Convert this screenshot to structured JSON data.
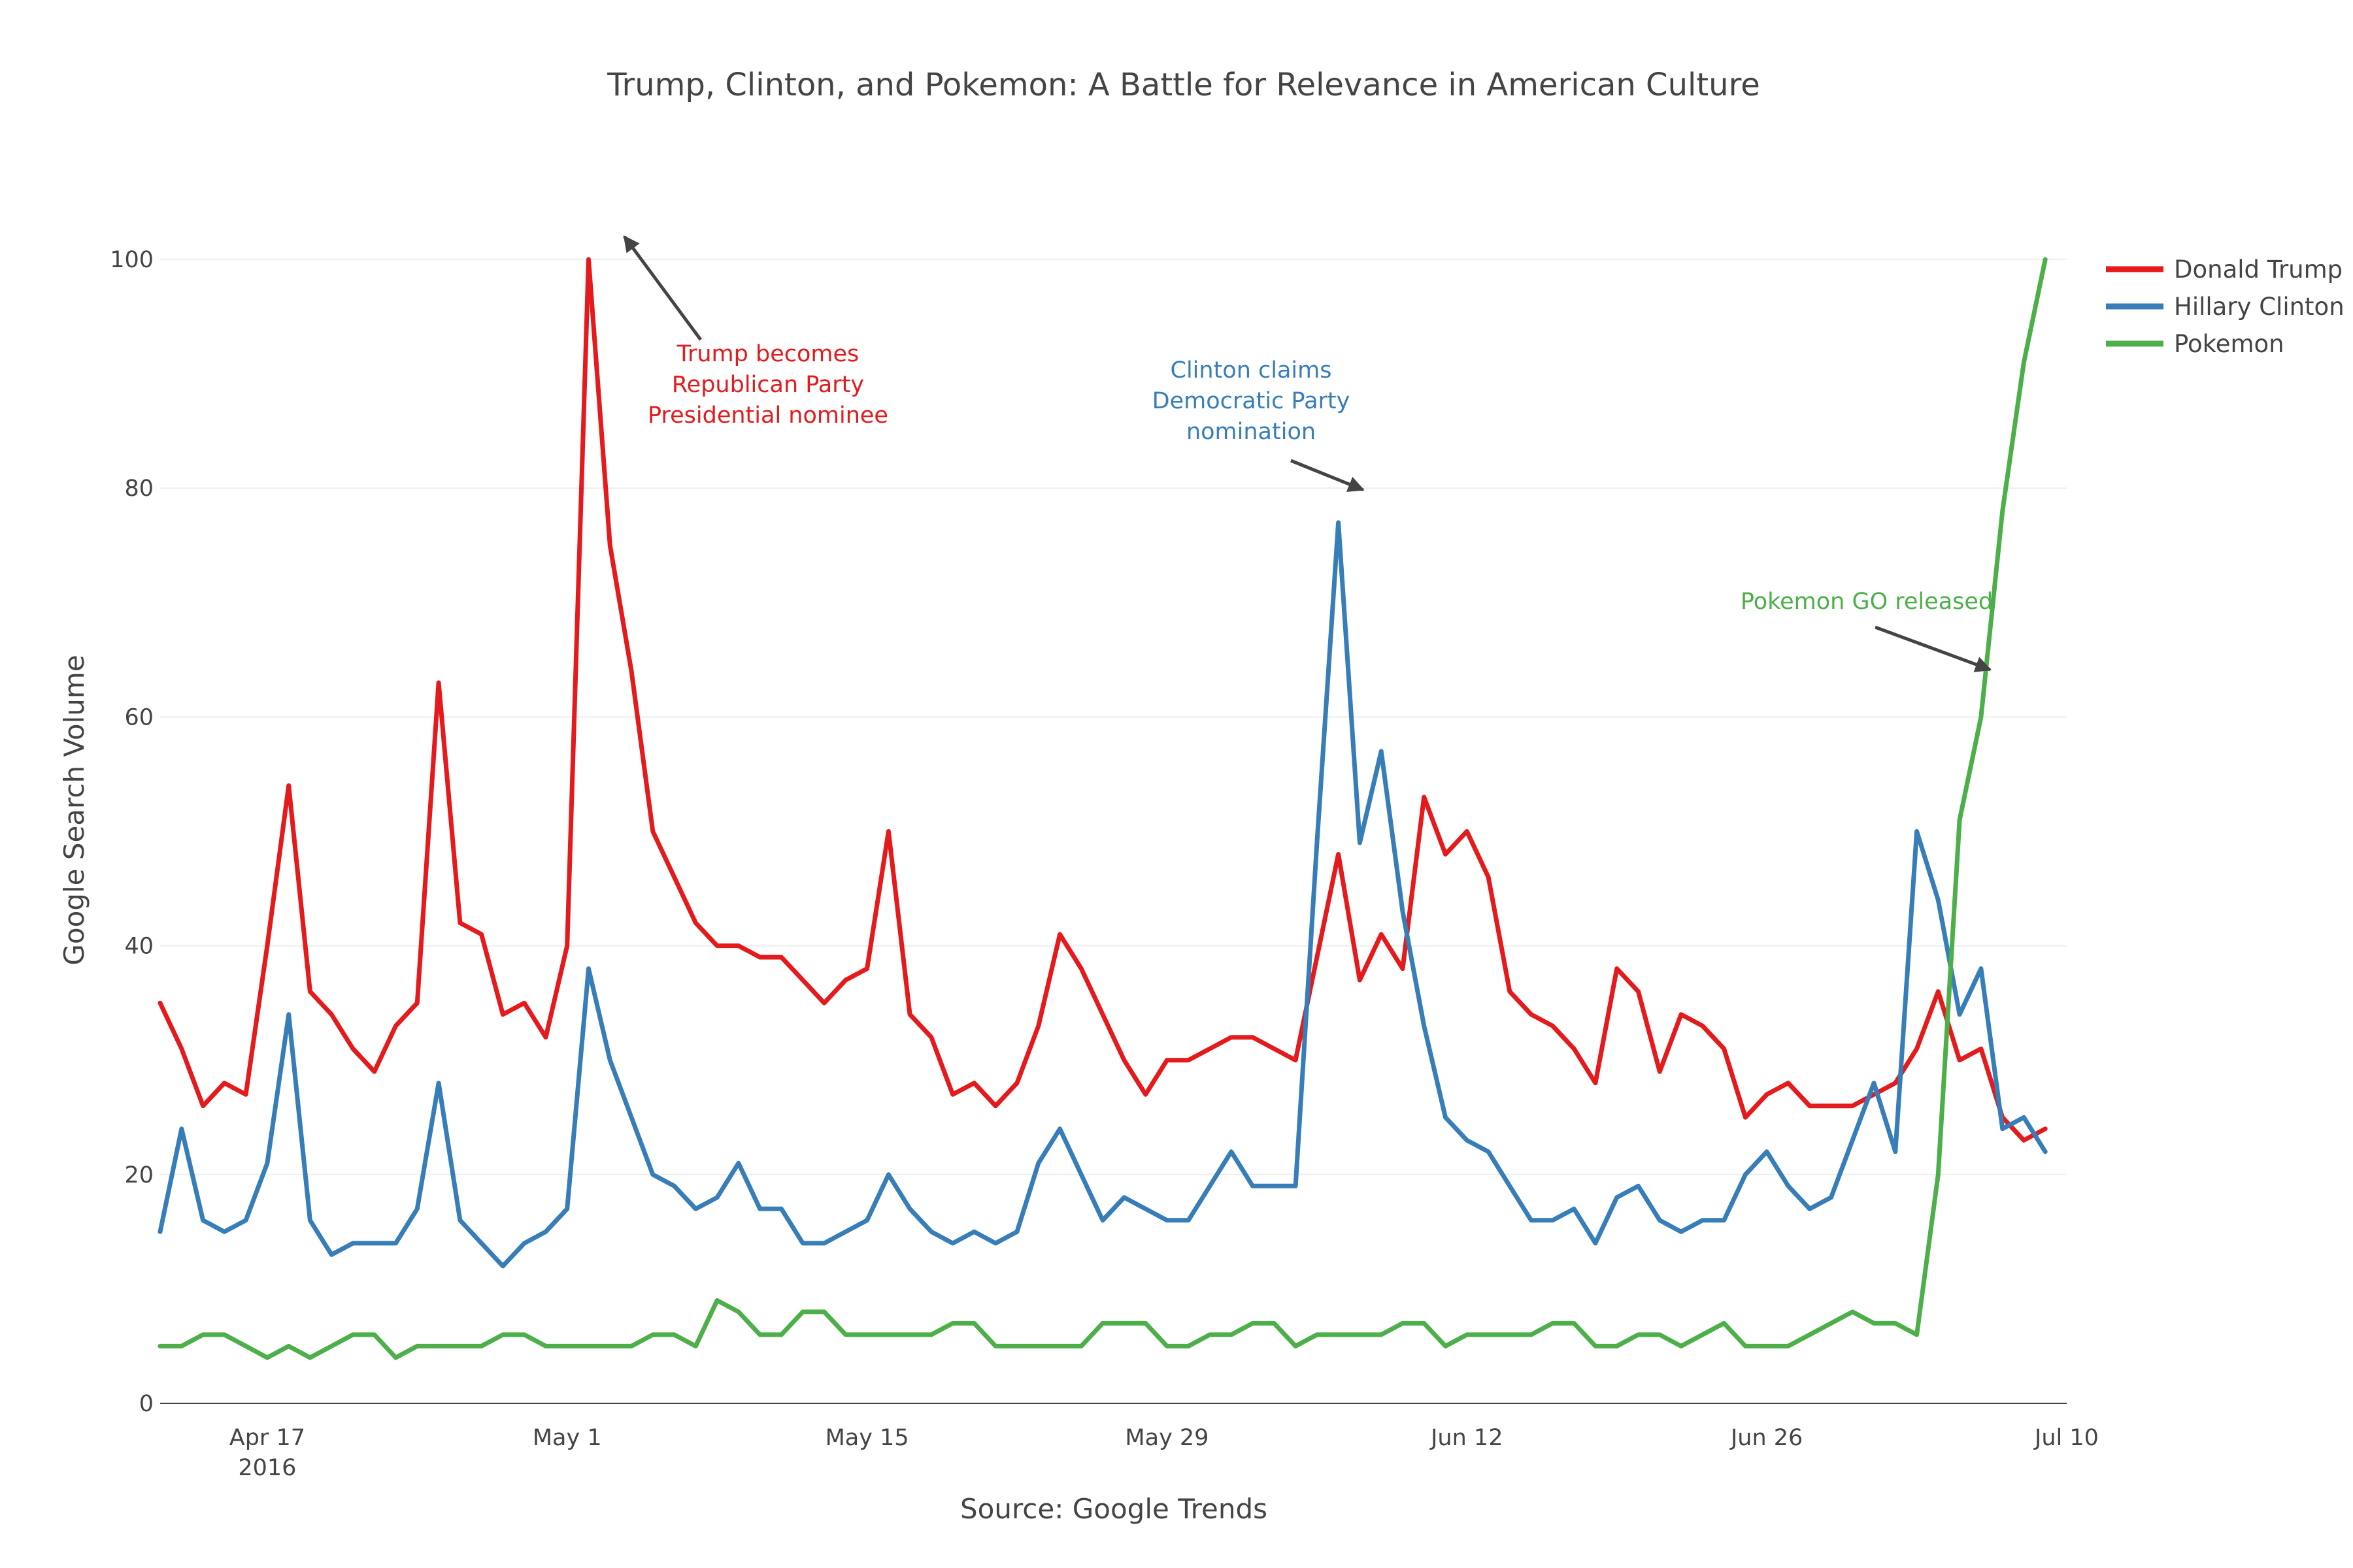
{
  "chart_data": {
    "type": "line",
    "title": "Trump, Clinton, and Pokemon: A Battle for Relevance in American Culture",
    "xlabel": "Source: Google Trends",
    "ylabel": "Google Search Volume",
    "x_start": "2016-04-12",
    "x_end": "2016-07-10",
    "xlim": [
      "2016-04-12",
      "2016-07-10"
    ],
    "ylim": [
      0,
      100
    ],
    "grid": true,
    "legend_position": "top-right",
    "x_ticks": [
      {
        "date": "2016-04-17",
        "label": "Apr 17",
        "sublabel": "2016"
      },
      {
        "date": "2016-05-01",
        "label": "May 1",
        "sublabel": ""
      },
      {
        "date": "2016-05-15",
        "label": "May 15",
        "sublabel": ""
      },
      {
        "date": "2016-05-29",
        "label": "May 29",
        "sublabel": ""
      },
      {
        "date": "2016-06-12",
        "label": "Jun 12",
        "sublabel": ""
      },
      {
        "date": "2016-06-26",
        "label": "Jun 26",
        "sublabel": ""
      },
      {
        "date": "2016-07-10",
        "label": "Jul 10",
        "sublabel": ""
      }
    ],
    "y_ticks": [
      0,
      20,
      40,
      60,
      80,
      100
    ],
    "series": [
      {
        "name": "Donald Trump",
        "color": "#e41a1c",
        "values": [
          35,
          31,
          26,
          28,
          27,
          40,
          54,
          36,
          34,
          31,
          29,
          33,
          35,
          63,
          42,
          41,
          34,
          35,
          32,
          40,
          100,
          75,
          64,
          50,
          46,
          42,
          40,
          40,
          39,
          39,
          37,
          35,
          37,
          38,
          50,
          34,
          32,
          27,
          28,
          26,
          28,
          33,
          41,
          38,
          34,
          30,
          27,
          30,
          30,
          31,
          32,
          32,
          31,
          30,
          39,
          48,
          37,
          41,
          38,
          53,
          48,
          50,
          46,
          36,
          34,
          33,
          31,
          28,
          38,
          36,
          29,
          34,
          33,
          31,
          25,
          27,
          28,
          26,
          26,
          26,
          27,
          28,
          31,
          36,
          30,
          31,
          25,
          23,
          24
        ]
      },
      {
        "name": "Hillary Clinton",
        "color": "#377eb8",
        "values": [
          15,
          24,
          16,
          15,
          16,
          21,
          34,
          16,
          13,
          14,
          14,
          14,
          17,
          28,
          16,
          14,
          12,
          14,
          15,
          17,
          38,
          30,
          25,
          20,
          19,
          17,
          18,
          21,
          17,
          17,
          14,
          14,
          15,
          16,
          20,
          17,
          15,
          14,
          15,
          14,
          15,
          21,
          24,
          20,
          16,
          18,
          17,
          16,
          16,
          19,
          22,
          19,
          19,
          19,
          49,
          77,
          49,
          57,
          43,
          33,
          25,
          23,
          22,
          19,
          16,
          16,
          17,
          14,
          18,
          19,
          16,
          15,
          16,
          16,
          20,
          22,
          19,
          17,
          18,
          23,
          28,
          22,
          50,
          44,
          34,
          38,
          24,
          25,
          22
        ]
      },
      {
        "name": "Pokemon",
        "color": "#4daf4a",
        "values": [
          5,
          5,
          6,
          6,
          5,
          4,
          5,
          4,
          5,
          6,
          6,
          4,
          5,
          5,
          5,
          5,
          6,
          6,
          5,
          5,
          5,
          5,
          5,
          6,
          6,
          5,
          9,
          8,
          6,
          6,
          8,
          8,
          6,
          6,
          6,
          6,
          6,
          7,
          7,
          5,
          5,
          5,
          5,
          5,
          7,
          7,
          7,
          5,
          5,
          6,
          6,
          7,
          7,
          5,
          6,
          6,
          6,
          6,
          7,
          7,
          5,
          6,
          6,
          6,
          6,
          7,
          7,
          5,
          5,
          6,
          6,
          5,
          6,
          7,
          5,
          5,
          5,
          6,
          7,
          8,
          7,
          7,
          6,
          20,
          51,
          60,
          78,
          91,
          100
        ]
      }
    ],
    "annotations": [
      {
        "text": [
          "Trump becomes",
          "Republican Party",
          "Presidential nominee"
        ],
        "color": "#e41a1c",
        "date": "2016-05-03",
        "value": 100
      },
      {
        "text": [
          "Clinton claims",
          "Democratic Party",
          "nomination"
        ],
        "color": "#377eb8",
        "date": "2016-06-07",
        "value": 77
      },
      {
        "text": [
          "Pokemon GO released"
        ],
        "color": "#4daf4a",
        "date": "2016-07-06",
        "value": 51
      }
    ]
  }
}
